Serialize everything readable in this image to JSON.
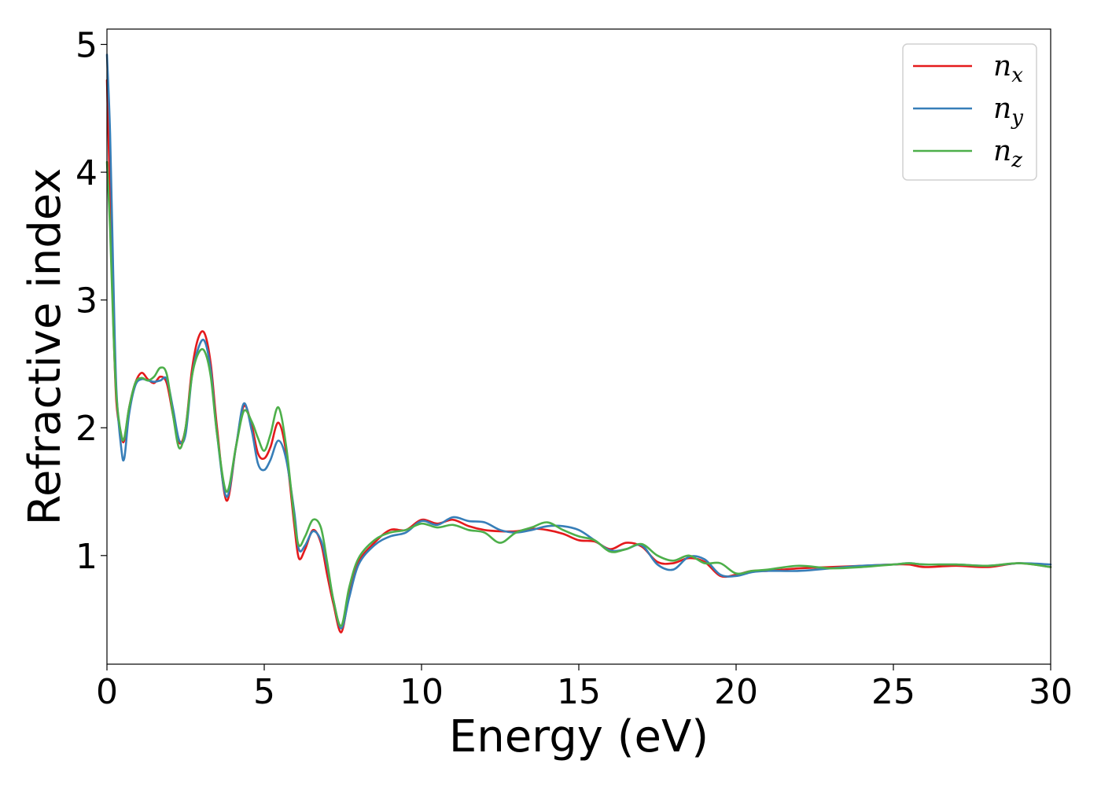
{
  "chart_data": {
    "type": "line",
    "xlabel": "Energy (eV)",
    "ylabel": "Refractive index",
    "xlim": [
      0,
      30
    ],
    "ylim": [
      0.15,
      5.12
    ],
    "xticks": [
      0,
      5,
      10,
      15,
      20,
      25,
      30
    ],
    "yticks": [
      1,
      2,
      3,
      4,
      5
    ],
    "grid": false,
    "legend_position": "top-right",
    "series": [
      {
        "name": "n_x",
        "label_base": "n",
        "label_sub": "x",
        "color": "#e41a1c",
        "x": [
          0,
          0.1,
          0.2,
          0.3,
          0.45,
          0.55,
          0.7,
          0.9,
          1.1,
          1.3,
          1.5,
          1.7,
          1.9,
          2.1,
          2.3,
          2.5,
          2.7,
          2.9,
          3.1,
          3.3,
          3.5,
          3.8,
          4.1,
          4.35,
          4.6,
          4.8,
          5.0,
          5.2,
          5.45,
          5.7,
          5.95,
          6.1,
          6.3,
          6.55,
          6.8,
          7.0,
          7.2,
          7.45,
          7.7,
          8.0,
          8.5,
          9.0,
          9.5,
          10.0,
          10.5,
          11.0,
          11.5,
          12.0,
          12.5,
          13.0,
          13.5,
          14.0,
          14.5,
          15.0,
          15.5,
          16.0,
          16.5,
          17.0,
          17.5,
          18.0,
          18.5,
          19.0,
          19.5,
          20.0,
          20.5,
          21.0,
          22.0,
          23.0,
          24.0,
          25.0,
          25.5,
          26.0,
          27.0,
          28.0,
          29.0,
          30.0
        ],
        "y": [
          4.72,
          3.8,
          2.85,
          2.2,
          1.95,
          1.9,
          2.15,
          2.35,
          2.43,
          2.38,
          2.35,
          2.4,
          2.35,
          2.1,
          1.88,
          2.0,
          2.45,
          2.7,
          2.74,
          2.5,
          2.0,
          1.43,
          1.85,
          2.17,
          2.02,
          1.8,
          1.76,
          1.85,
          2.04,
          1.8,
          1.25,
          0.98,
          1.05,
          1.2,
          1.1,
          0.85,
          0.62,
          0.4,
          0.7,
          0.95,
          1.1,
          1.2,
          1.2,
          1.28,
          1.25,
          1.28,
          1.23,
          1.2,
          1.19,
          1.19,
          1.21,
          1.2,
          1.17,
          1.12,
          1.11,
          1.05,
          1.1,
          1.07,
          0.95,
          0.94,
          0.98,
          0.95,
          0.84,
          0.85,
          0.88,
          0.88,
          0.9,
          0.91,
          0.92,
          0.93,
          0.93,
          0.91,
          0.92,
          0.91,
          0.94,
          0.91
        ]
      },
      {
        "name": "n_y",
        "label_base": "n",
        "label_sub": "y",
        "color": "#377eb8",
        "x": [
          0,
          0.1,
          0.2,
          0.3,
          0.45,
          0.55,
          0.7,
          0.9,
          1.1,
          1.3,
          1.5,
          1.7,
          1.9,
          2.1,
          2.3,
          2.5,
          2.7,
          2.9,
          3.1,
          3.3,
          3.5,
          3.8,
          4.1,
          4.35,
          4.6,
          4.8,
          5.0,
          5.2,
          5.45,
          5.7,
          5.95,
          6.1,
          6.3,
          6.55,
          6.8,
          7.0,
          7.2,
          7.45,
          7.7,
          8.0,
          8.5,
          9.0,
          9.5,
          10.0,
          10.5,
          11.0,
          11.5,
          12.0,
          12.5,
          13.0,
          13.5,
          14.0,
          14.5,
          15.0,
          15.5,
          16.0,
          16.5,
          17.0,
          17.5,
          18.0,
          18.5,
          19.0,
          19.5,
          20.0,
          20.5,
          21.0,
          22.0,
          23.0,
          24.0,
          25.0,
          25.5,
          26.0,
          27.0,
          28.0,
          29.0,
          30.0
        ],
        "y": [
          4.92,
          4.3,
          3.2,
          2.3,
          1.85,
          1.76,
          2.1,
          2.33,
          2.38,
          2.37,
          2.36,
          2.37,
          2.38,
          2.15,
          1.9,
          1.95,
          2.4,
          2.62,
          2.68,
          2.45,
          1.95,
          1.46,
          1.85,
          2.19,
          1.98,
          1.72,
          1.67,
          1.75,
          1.9,
          1.75,
          1.35,
          1.05,
          1.08,
          1.19,
          1.12,
          0.92,
          0.65,
          0.43,
          0.67,
          0.93,
          1.08,
          1.15,
          1.18,
          1.27,
          1.24,
          1.3,
          1.27,
          1.26,
          1.2,
          1.18,
          1.2,
          1.23,
          1.23,
          1.2,
          1.12,
          1.04,
          1.05,
          1.08,
          0.93,
          0.89,
          0.99,
          0.97,
          0.85,
          0.84,
          0.87,
          0.88,
          0.88,
          0.9,
          0.92,
          0.93,
          0.94,
          0.93,
          0.93,
          0.92,
          0.94,
          0.93
        ]
      },
      {
        "name": "n_z",
        "label_base": "n",
        "label_sub": "z",
        "color": "#4daf4a",
        "x": [
          0,
          0.1,
          0.2,
          0.3,
          0.45,
          0.55,
          0.7,
          0.9,
          1.1,
          1.3,
          1.5,
          1.7,
          1.9,
          2.1,
          2.3,
          2.5,
          2.7,
          2.9,
          3.1,
          3.3,
          3.5,
          3.8,
          4.1,
          4.35,
          4.6,
          4.8,
          5.0,
          5.2,
          5.45,
          5.7,
          5.95,
          6.1,
          6.3,
          6.55,
          6.8,
          7.0,
          7.2,
          7.45,
          7.7,
          8.0,
          8.5,
          9.0,
          9.5,
          10.0,
          10.5,
          11.0,
          11.5,
          12.0,
          12.5,
          13.0,
          13.5,
          14.0,
          14.5,
          15.0,
          15.5,
          16.0,
          16.5,
          17.0,
          17.5,
          18.0,
          18.5,
          19.0,
          19.5,
          20.0,
          20.5,
          21.0,
          22.0,
          23.0,
          24.0,
          25.0,
          25.5,
          26.0,
          27.0,
          28.0,
          29.0,
          30.0
        ],
        "y": [
          4.08,
          3.55,
          2.8,
          2.25,
          1.95,
          1.92,
          2.15,
          2.35,
          2.39,
          2.37,
          2.4,
          2.47,
          2.42,
          2.1,
          1.84,
          2.0,
          2.4,
          2.58,
          2.6,
          2.4,
          1.95,
          1.5,
          1.85,
          2.13,
          2.05,
          1.92,
          1.82,
          1.95,
          2.16,
          1.85,
          1.3,
          1.08,
          1.15,
          1.28,
          1.22,
          0.95,
          0.65,
          0.45,
          0.75,
          0.98,
          1.12,
          1.18,
          1.2,
          1.25,
          1.22,
          1.24,
          1.2,
          1.18,
          1.1,
          1.18,
          1.22,
          1.26,
          1.2,
          1.15,
          1.12,
          1.03,
          1.05,
          1.09,
          1.0,
          0.96,
          1.0,
          0.94,
          0.94,
          0.86,
          0.88,
          0.89,
          0.92,
          0.9,
          0.91,
          0.93,
          0.94,
          0.93,
          0.93,
          0.92,
          0.94,
          0.91
        ]
      }
    ]
  }
}
